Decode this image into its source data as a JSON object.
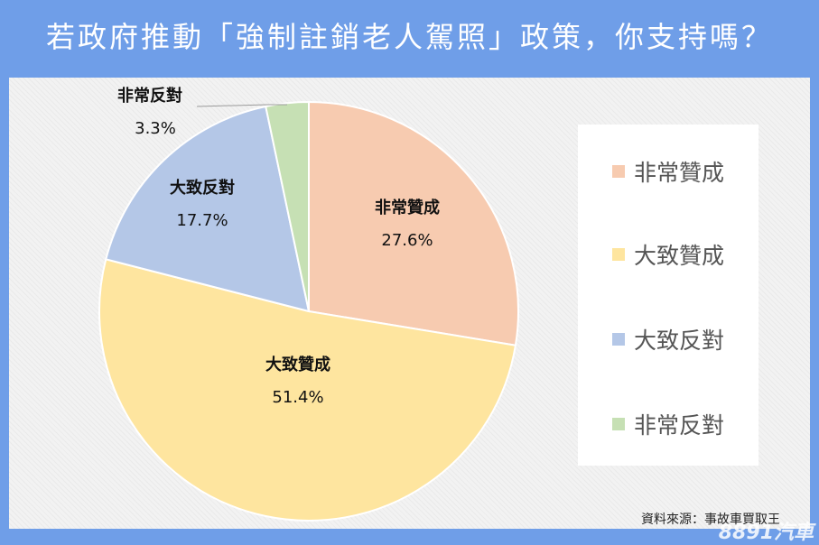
{
  "title": "若政府推動「強制註銷老人駕照」政策，你支持嗎？",
  "source_note": "資料來源：事故車買取王",
  "watermark": "8891汽車",
  "colors": {
    "background": "#6f9ee8",
    "slice_strongly_agree": "#f7cbb0",
    "slice_mostly_agree": "#fee59f",
    "slice_mostly_oppose": "#b4c7e7",
    "slice_strongly_oppose": "#c6e0b4"
  },
  "chart_data": {
    "type": "pie",
    "title": "若政府推動「強制註銷老人駕照」政策，你支持嗎？",
    "categories": [
      "非常贊成",
      "大致贊成",
      "大致反對",
      "非常反對"
    ],
    "values": [
      27.6,
      51.4,
      17.7,
      3.3
    ],
    "value_labels": [
      "27.6%",
      "51.4%",
      "17.7%",
      "3.3%"
    ],
    "legend": {
      "position": "right",
      "entries": [
        "非常贊成",
        "大致贊成",
        "大致反對",
        "非常反對"
      ]
    }
  }
}
